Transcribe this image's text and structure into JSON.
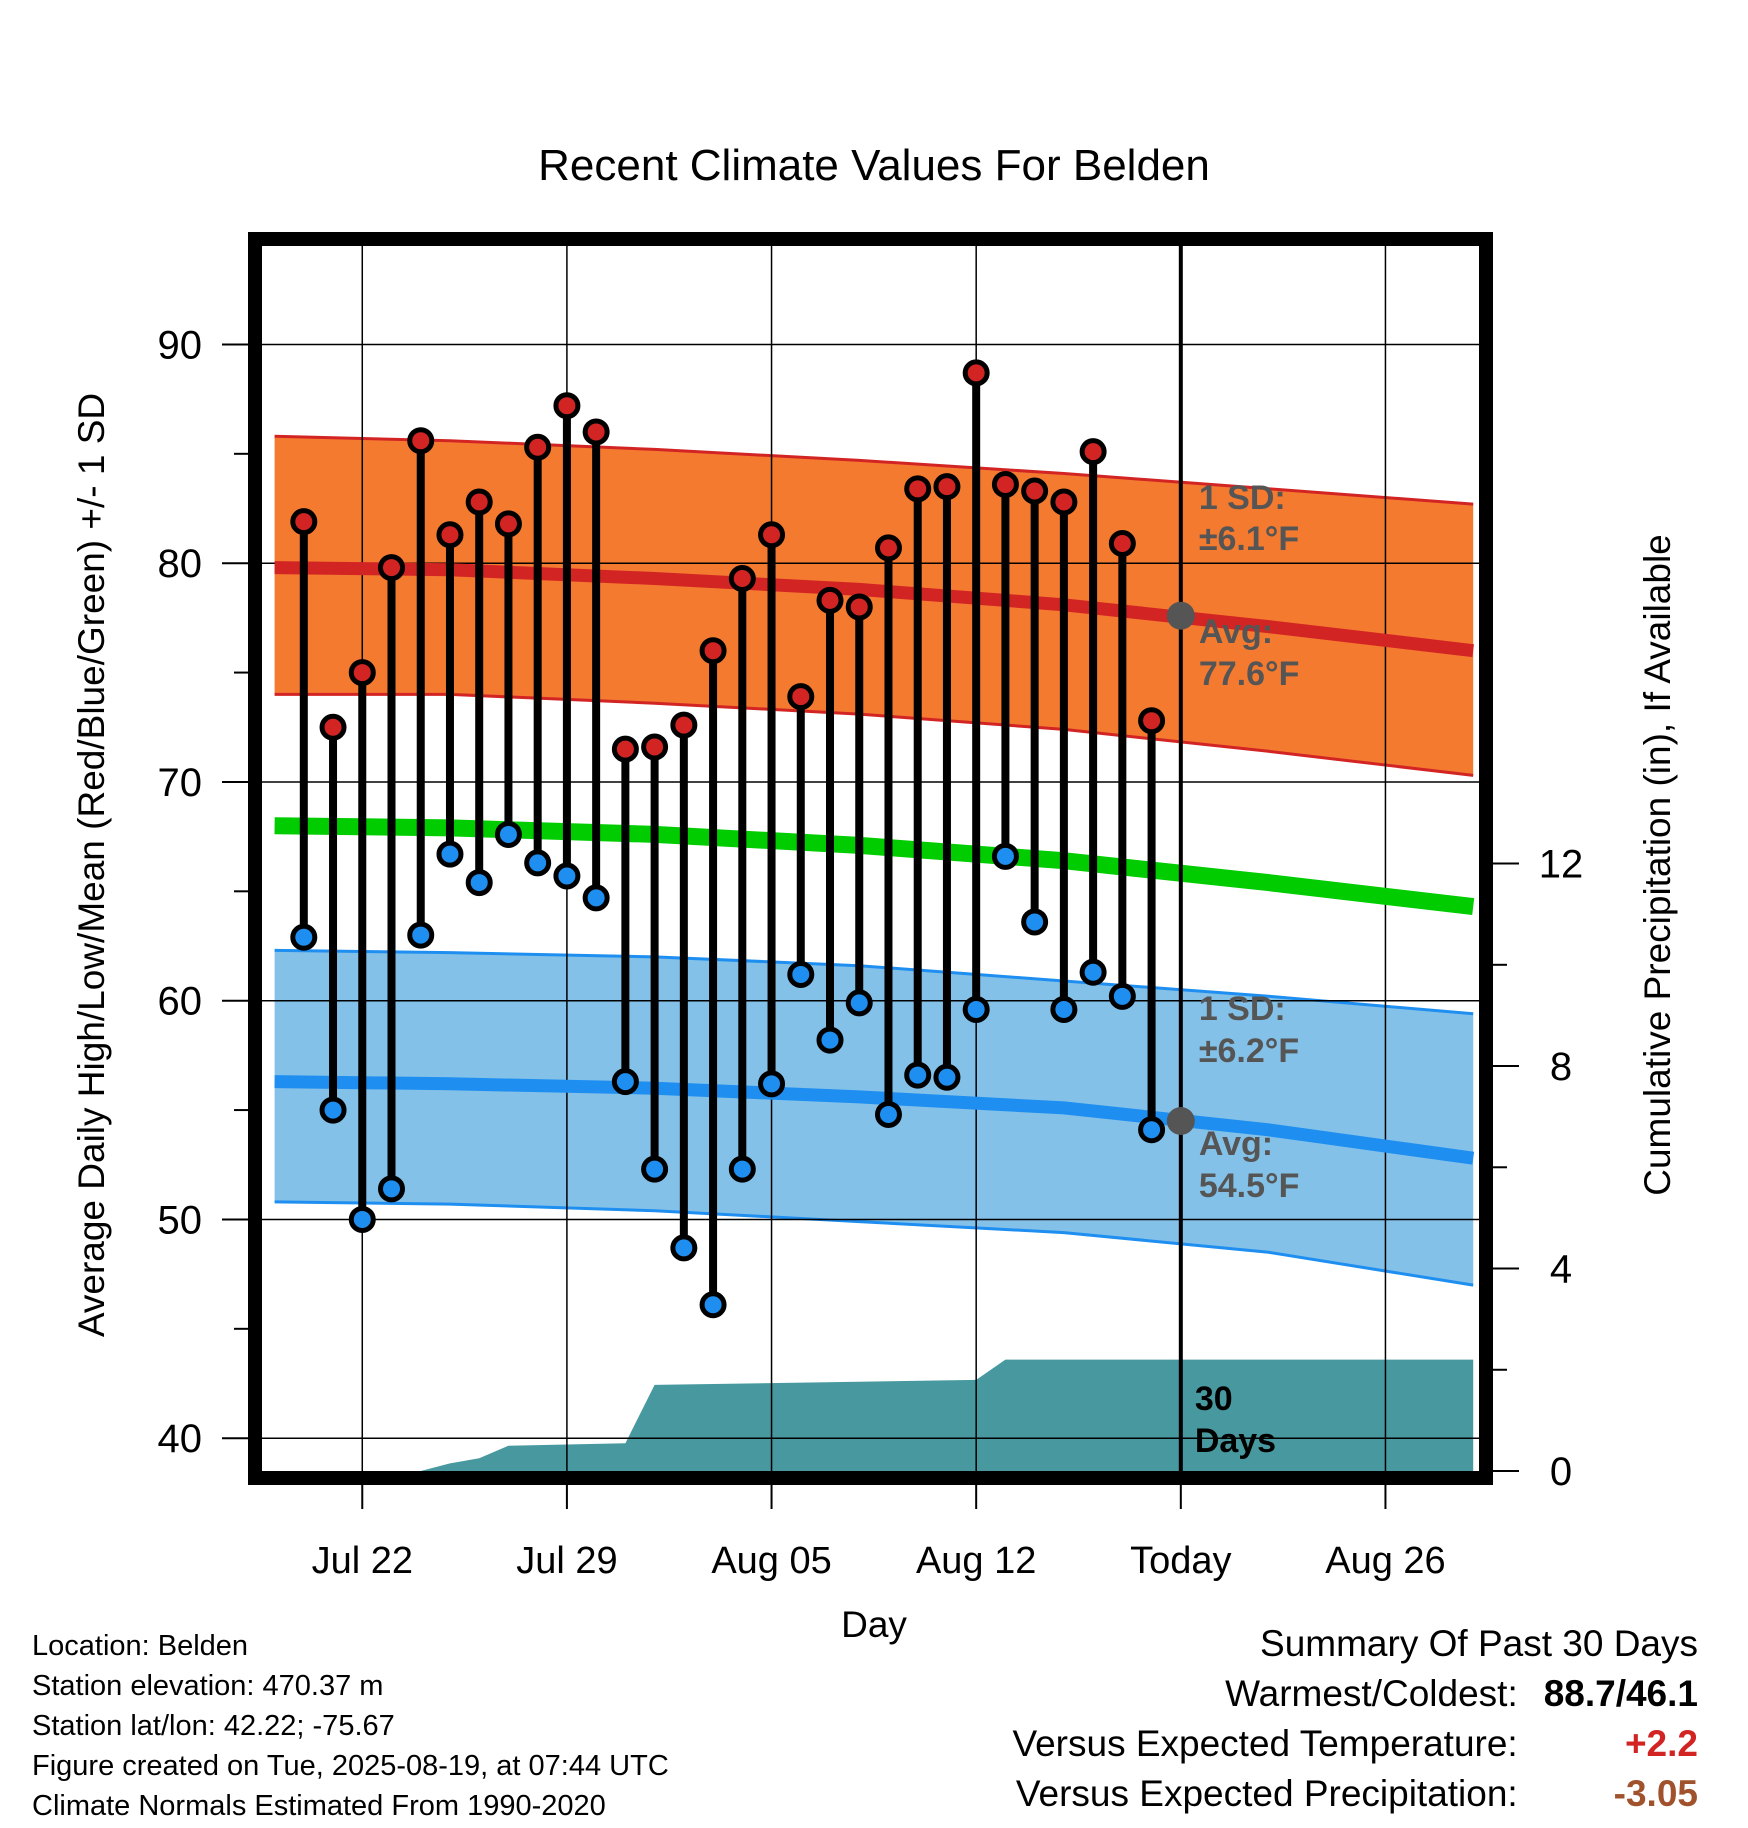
{
  "chart_data": {
    "type": "line",
    "title": "Recent Climate Values For Belden",
    "xlabel": "Day",
    "ylabel": "Average Daily High/Low/Mean (Red/Blue/Green) +/- 1 SD",
    "y2label": "Cumulative Precipitation (in), If Available",
    "ylim": [
      38.5,
      94.5
    ],
    "y2lim": [
      0,
      24.2
    ],
    "y_ticks": [
      40,
      50,
      60,
      70,
      80,
      90
    ],
    "y_ticks_labels": [
      "40",
      "50",
      "60",
      "70",
      "80",
      "90"
    ],
    "y2_ticks": [
      0,
      4,
      8,
      12
    ],
    "y2_ticks_labels": [
      "0",
      "4",
      "8",
      "12"
    ],
    "x_ticks_labels": [
      "Jul 22",
      "Jul 29",
      "Aug 05",
      "Aug 12",
      "Today",
      "Aug 26"
    ],
    "grid": true,
    "x_dates": [
      "Jul 20",
      "Jul 21",
      "Jul 22",
      "Jul 23",
      "Jul 24",
      "Jul 25",
      "Jul 26",
      "Jul 27",
      "Jul 28",
      "Jul 29",
      "Jul 30",
      "Jul 31",
      "Aug 01",
      "Aug 02",
      "Aug 03",
      "Aug 04",
      "Aug 05",
      "Aug 06",
      "Aug 07",
      "Aug 08",
      "Aug 09",
      "Aug 10",
      "Aug 11",
      "Aug 12",
      "Aug 13",
      "Aug 14",
      "Aug 15",
      "Aug 16",
      "Aug 17",
      "Aug 18"
    ],
    "series": [
      {
        "name": "",
        "color": "#d32424",
        "values": [
          81.9,
          72.5,
          75.0,
          79.8,
          85.6,
          81.3,
          82.8,
          81.8,
          85.3,
          87.2,
          86.0,
          71.5,
          71.6,
          72.6,
          76.0,
          79.3,
          81.3,
          73.9,
          78.3,
          78.0,
          80.7,
          83.4,
          83.5,
          88.7,
          83.6,
          83.3,
          82.8,
          85.1,
          80.9,
          72.8
        ]
      },
      {
        "name": "",
        "color": "#1e8ff0",
        "values": [
          62.9,
          55.0,
          50.0,
          51.4,
          63.0,
          66.7,
          65.4,
          67.6,
          66.3,
          65.7,
          64.7,
          56.3,
          52.3,
          48.7,
          46.1,
          52.3,
          56.2,
          61.2,
          58.2,
          59.9,
          54.8,
          56.6,
          56.5,
          59.6,
          66.6,
          63.6,
          59.6,
          61.3,
          60.2,
          54.1
        ]
      }
    ],
    "normals": {
      "x_dates": [
        "Jul 19",
        "Jul 25",
        "Aug 01",
        "Aug 08",
        "Aug 15",
        "Aug 22",
        "Aug 29"
      ],
      "high_avg": [
        79.8,
        79.7,
        79.3,
        78.8,
        78.1,
        77.1,
        76.0
      ],
      "high_upper": [
        85.8,
        85.6,
        85.2,
        84.7,
        84.1,
        83.4,
        82.7
      ],
      "high_lower": [
        74.0,
        74.0,
        73.6,
        73.1,
        72.4,
        71.4,
        70.3
      ],
      "mean_avg": [
        68.0,
        67.9,
        67.6,
        67.1,
        66.4,
        65.4,
        64.3
      ],
      "low_avg": [
        56.3,
        56.2,
        56.0,
        55.6,
        55.1,
        54.1,
        52.8
      ],
      "low_upper": [
        62.3,
        62.2,
        62.0,
        61.6,
        60.9,
        60.2,
        59.4
      ],
      "low_lower": [
        50.8,
        50.7,
        50.4,
        49.9,
        49.4,
        48.5,
        47.0
      ],
      "precip_x_dates": [
        "Jul 19",
        "Jul 24",
        "Jul 25",
        "Jul 26",
        "Jul 27",
        "Jul 31",
        "Aug 01",
        "Aug 12",
        "Aug 13",
        "Aug 29"
      ],
      "precip_cum": [
        0.0,
        0.0,
        0.15,
        0.25,
        0.5,
        0.55,
        1.7,
        1.8,
        2.2,
        2.2
      ]
    },
    "annotations": {
      "high_sd": "1 SD:",
      "high_sd_val": "±6.1°F",
      "high_avg_label": "Avg:",
      "high_avg_val": "77.6°F",
      "low_sd": "1 SD:",
      "low_sd_val": "±6.2°F",
      "low_avg_label": "Avg:",
      "low_avg_val": "54.5°F",
      "days_num": "30",
      "days_word": "Days"
    },
    "colors": {
      "high_band": "#f47a30",
      "high_line": "#d32424",
      "mean_line": "#00cc00",
      "low_band": "#84c1e8",
      "low_line": "#1e8ff0",
      "precip": "#47999f",
      "today_marker": "#555555",
      "annotation_text": "#555555"
    }
  },
  "meta": {
    "location": "Location: Belden",
    "elevation": "Station elevation: 470.37 m",
    "latlon": "Station lat/lon: 42.22; -75.67",
    "created": "Figure created on Tue, 2025-08-19, at 07:44 UTC",
    "normals": "Climate Normals Estimated From 1990-2020"
  },
  "summary": {
    "title": "Summary Of Past 30 Days",
    "warm_cold_label": "Warmest/Coldest:",
    "warm_cold_value": "88.7/46.1",
    "temp_label": "Versus Expected Temperature:",
    "temp_value": "+2.2",
    "temp_color": "#d32424",
    "precip_label": "Versus Expected Precipitation:",
    "precip_value": "-3.05",
    "precip_color": "#a0522d"
  }
}
